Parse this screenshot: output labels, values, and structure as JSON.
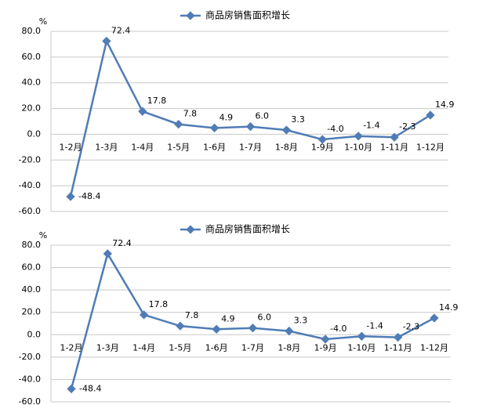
{
  "chart_data": [
    {
      "type": "line",
      "y_label": "%",
      "categories": [
        "1-2月",
        "1-3月",
        "1-4月",
        "1-5月",
        "1-6月",
        "1-7月",
        "1-8月",
        "1-9月",
        "1-10月",
        "1-11月",
        "1-12月"
      ],
      "series": [
        {
          "name": "商品房销售面积增长",
          "color": "#4f7cb5",
          "values": [
            -48.4,
            72.4,
            17.8,
            7.8,
            4.9,
            6.0,
            3.3,
            -4.0,
            -1.4,
            -2.3,
            14.9
          ],
          "value_labels": [
            "-48.4",
            "72.4",
            "17.8",
            "7.8",
            "4.9",
            "6.0",
            "3.3",
            "-4.0",
            "-1.4",
            "-2.3",
            "14.9"
          ]
        }
      ],
      "ylim": [
        -60,
        80
      ],
      "yticks": [
        {
          "value": -60,
          "label": "-60.0"
        },
        {
          "value": -40,
          "label": "-40.0"
        },
        {
          "value": -20,
          "label": "-20.0"
        },
        {
          "value": 0,
          "label": "0.0"
        },
        {
          "value": 20,
          "label": "20.0"
        },
        {
          "value": 40,
          "label": "40.0"
        },
        {
          "value": 60,
          "label": "60.0"
        },
        {
          "value": 80,
          "label": "80.0"
        }
      ],
      "grid": true,
      "legend": "top"
    },
    {
      "type": "line",
      "y_label": "%",
      "categories": [
        "1-2月",
        "1-3月",
        "1-4月",
        "1-5月",
        "1-6月",
        "1-7月",
        "1-8月",
        "1-9月",
        "1-10月",
        "1-11月",
        "1-12月"
      ],
      "series": [
        {
          "name": "商品房销售面积增长",
          "color": "#4f7cb5",
          "values": [
            -48.4,
            72.4,
            17.8,
            7.8,
            4.9,
            6.0,
            3.3,
            -4.0,
            -1.4,
            -2.3,
            14.9
          ],
          "value_labels": [
            "-48.4",
            "72.4",
            "17.8",
            "7.8",
            "4.9",
            "6.0",
            "3.3",
            "-4.0",
            "-1.4",
            "-2.3",
            "14.9"
          ]
        }
      ],
      "ylim": [
        -60,
        80
      ],
      "yticks": [
        {
          "value": -60,
          "label": "-60.0"
        },
        {
          "value": -40,
          "label": "-40.0"
        },
        {
          "value": -20,
          "label": "-20.0"
        },
        {
          "value": 0,
          "label": "0.0"
        },
        {
          "value": 20,
          "label": "20.0"
        },
        {
          "value": 40,
          "label": "40.0"
        },
        {
          "value": 60,
          "label": "60.0"
        },
        {
          "value": 80,
          "label": "80.0"
        }
      ],
      "grid": true,
      "legend": "top"
    }
  ]
}
